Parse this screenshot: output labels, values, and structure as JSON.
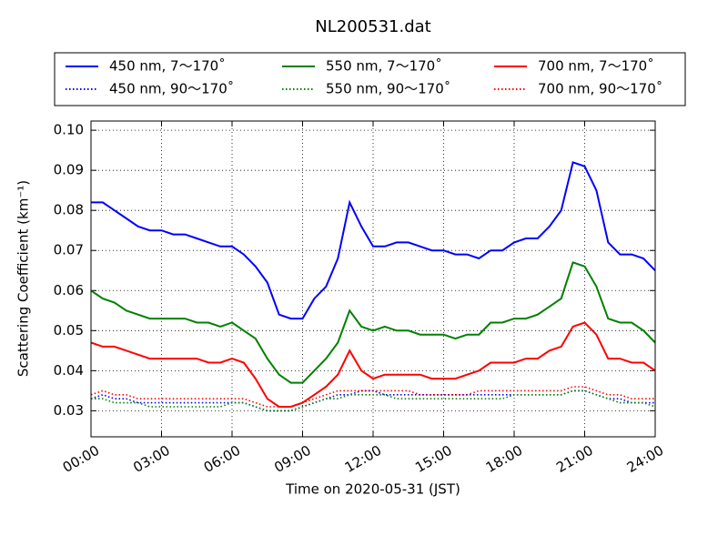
{
  "chart_data": {
    "type": "line",
    "title": "NL200531.dat",
    "xlabel": "Time on 2020-05-31 (JST)",
    "ylabel": "Scattering Coefficient (km⁻¹)",
    "x": [
      0,
      0.5,
      1,
      1.5,
      2,
      2.5,
      3,
      3.5,
      4,
      4.5,
      5,
      5.5,
      6,
      6.5,
      7,
      7.5,
      8,
      8.5,
      9,
      9.5,
      10,
      10.5,
      11,
      11.5,
      12,
      12.5,
      13,
      13.5,
      14,
      14.5,
      15,
      15.5,
      16,
      16.5,
      17,
      17.5,
      18,
      18.5,
      19,
      19.5,
      20,
      20.5,
      21,
      21.5,
      22,
      22.5,
      23,
      23.5,
      24
    ],
    "xlim": [
      0,
      24
    ],
    "xticks": [
      {
        "value": 0,
        "label": "00:00"
      },
      {
        "value": 3,
        "label": "03:00"
      },
      {
        "value": 6,
        "label": "06:00"
      },
      {
        "value": 9,
        "label": "09:00"
      },
      {
        "value": 12,
        "label": "12:00"
      },
      {
        "value": 15,
        "label": "15:00"
      },
      {
        "value": 18,
        "label": "18:00"
      },
      {
        "value": 21,
        "label": "21:00"
      },
      {
        "value": 24,
        "label": "24:00"
      }
    ],
    "ylim": [
      0.0235,
      0.1023
    ],
    "yticks": [
      0.03,
      0.04,
      0.05,
      0.06,
      0.07,
      0.08,
      0.09,
      {
        "value": 0.1,
        "label": "0.10"
      }
    ],
    "grid": true,
    "legend": "top",
    "series": [
      {
        "name": "450 nm, 7～170˚",
        "color": "#0000ff",
        "style": "solid",
        "values": [
          0.082,
          0.082,
          0.08,
          0.078,
          0.076,
          0.075,
          0.075,
          0.074,
          0.074,
          0.073,
          0.072,
          0.071,
          0.071,
          0.069,
          0.066,
          0.062,
          0.054,
          0.053,
          0.053,
          0.058,
          0.061,
          0.068,
          0.082,
          0.076,
          0.071,
          0.071,
          0.072,
          0.072,
          0.071,
          0.07,
          0.07,
          0.069,
          0.069,
          0.068,
          0.07,
          0.07,
          0.072,
          0.073,
          0.073,
          0.076,
          0.08,
          0.092,
          0.091,
          0.085,
          0.072,
          0.069,
          0.069,
          0.068,
          0.065
        ]
      },
      {
        "name": "450 nm, 90～170˚",
        "color": "#0000ff",
        "style": "dotted",
        "values": [
          0.033,
          0.034,
          0.033,
          0.033,
          0.032,
          0.032,
          0.032,
          0.032,
          0.032,
          0.032,
          0.032,
          0.032,
          0.032,
          0.032,
          0.031,
          0.03,
          0.03,
          0.03,
          0.031,
          0.032,
          0.033,
          0.034,
          0.034,
          0.035,
          0.035,
          0.034,
          0.034,
          0.034,
          0.034,
          0.034,
          0.034,
          0.034,
          0.034,
          0.034,
          0.034,
          0.034,
          0.034,
          0.034,
          0.034,
          0.034,
          0.034,
          0.035,
          0.035,
          0.034,
          0.033,
          0.033,
          0.032,
          0.032,
          0.032
        ]
      },
      {
        "name": "550 nm, 7～170˚",
        "color": "#008000",
        "style": "solid",
        "values": [
          0.06,
          0.058,
          0.057,
          0.055,
          0.054,
          0.053,
          0.053,
          0.053,
          0.053,
          0.052,
          0.052,
          0.051,
          0.052,
          0.05,
          0.048,
          0.043,
          0.039,
          0.037,
          0.037,
          0.04,
          0.043,
          0.047,
          0.055,
          0.051,
          0.05,
          0.051,
          0.05,
          0.05,
          0.049,
          0.049,
          0.049,
          0.048,
          0.049,
          0.049,
          0.052,
          0.052,
          0.053,
          0.053,
          0.054,
          0.056,
          0.058,
          0.067,
          0.066,
          0.061,
          0.053,
          0.052,
          0.052,
          0.05,
          0.047
        ]
      },
      {
        "name": "550 nm, 90～170˚",
        "color": "#008000",
        "style": "dotted",
        "values": [
          0.033,
          0.033,
          0.032,
          0.032,
          0.032,
          0.031,
          0.031,
          0.031,
          0.031,
          0.031,
          0.031,
          0.031,
          0.032,
          0.032,
          0.031,
          0.03,
          0.03,
          0.03,
          0.031,
          0.032,
          0.033,
          0.033,
          0.034,
          0.034,
          0.034,
          0.034,
          0.033,
          0.033,
          0.033,
          0.033,
          0.033,
          0.033,
          0.033,
          0.033,
          0.033,
          0.033,
          0.034,
          0.034,
          0.034,
          0.034,
          0.034,
          0.035,
          0.035,
          0.034,
          0.033,
          0.032,
          0.032,
          0.032,
          0.031
        ]
      },
      {
        "name": "700 nm, 7～170˚",
        "color": "#ff0000",
        "style": "solid",
        "values": [
          0.047,
          0.046,
          0.046,
          0.045,
          0.044,
          0.043,
          0.043,
          0.043,
          0.043,
          0.043,
          0.042,
          0.042,
          0.043,
          0.042,
          0.038,
          0.033,
          0.031,
          0.031,
          0.032,
          0.034,
          0.036,
          0.039,
          0.045,
          0.04,
          0.038,
          0.039,
          0.039,
          0.039,
          0.039,
          0.038,
          0.038,
          0.038,
          0.039,
          0.04,
          0.042,
          0.042,
          0.042,
          0.043,
          0.043,
          0.045,
          0.046,
          0.051,
          0.052,
          0.049,
          0.043,
          0.043,
          0.042,
          0.042,
          0.04
        ]
      },
      {
        "name": "700 nm, 90～170˚",
        "color": "#ff0000",
        "style": "dotted",
        "values": [
          0.034,
          0.035,
          0.034,
          0.034,
          0.033,
          0.033,
          0.033,
          0.033,
          0.033,
          0.033,
          0.033,
          0.033,
          0.033,
          0.033,
          0.032,
          0.031,
          0.031,
          0.031,
          0.032,
          0.033,
          0.034,
          0.035,
          0.035,
          0.035,
          0.035,
          0.035,
          0.035,
          0.035,
          0.034,
          0.034,
          0.034,
          0.034,
          0.034,
          0.035,
          0.035,
          0.035,
          0.035,
          0.035,
          0.035,
          0.035,
          0.035,
          0.036,
          0.036,
          0.035,
          0.034,
          0.034,
          0.033,
          0.033,
          0.033
        ]
      }
    ]
  }
}
